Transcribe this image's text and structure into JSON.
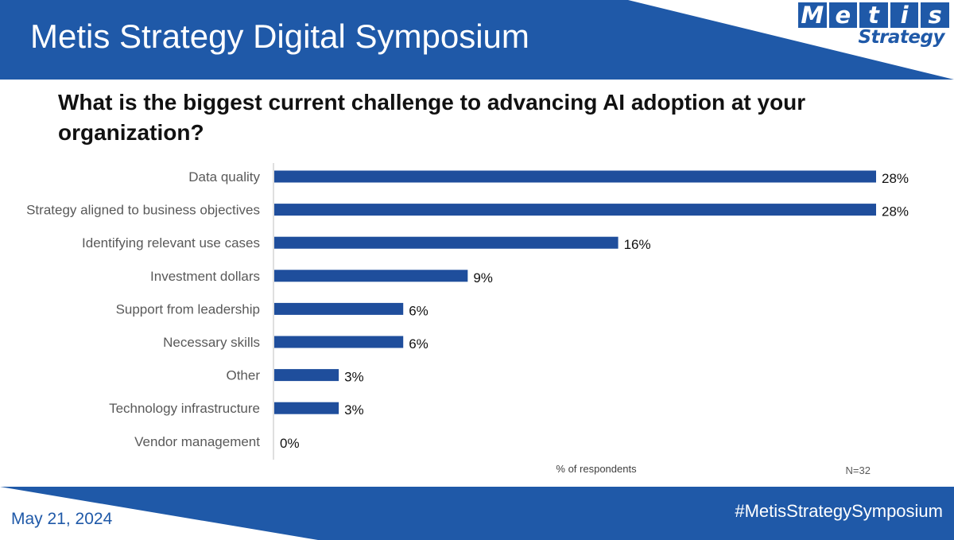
{
  "header": {
    "title": "Metis Strategy Digital Symposium"
  },
  "logo": {
    "letters": [
      "M",
      "e",
      "t",
      "i",
      "s"
    ],
    "subtitle": "Strategy"
  },
  "colors": {
    "brand_blue": "#1f59a8",
    "bar_blue": "#1f4e9c"
  },
  "chart_data": {
    "type": "bar",
    "orientation": "horizontal",
    "title": "What is the biggest current challenge to advancing AI adoption at your organization?",
    "categories": [
      "Data quality",
      "Strategy aligned to business objectives",
      "Identifying relevant use cases",
      "Investment dollars",
      "Support from leadership",
      "Necessary skills",
      "Other",
      "Technology infrastructure",
      "Vendor management"
    ],
    "values": [
      28,
      28,
      16,
      9,
      6,
      6,
      3,
      3,
      0
    ],
    "data_labels": [
      "28%",
      "28%",
      "16%",
      "9%",
      "6%",
      "6%",
      "3%",
      "3%",
      "0%"
    ],
    "xlabel": "% of respondents",
    "ylabel": "",
    "xlim": [
      0,
      28
    ],
    "grid": false,
    "legend": "none",
    "note": "N=32"
  },
  "footer": {
    "date": "May 21, 2024",
    "hashtag": "#MetisStrategySymposium"
  }
}
